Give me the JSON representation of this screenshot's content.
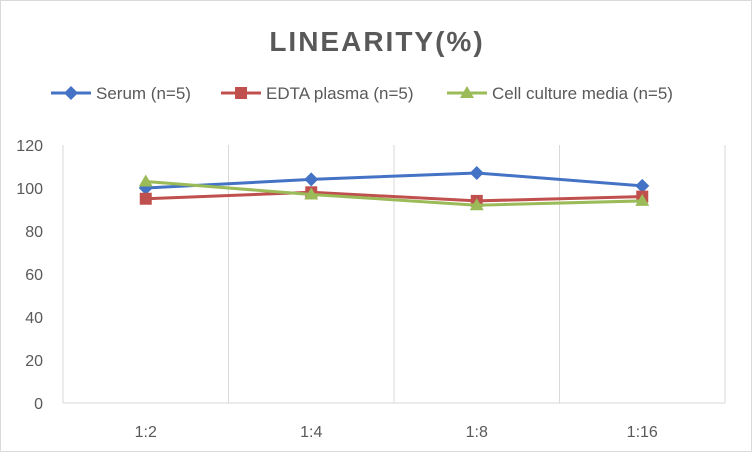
{
  "chart_data": {
    "type": "line",
    "title": "LINEARITY(%)",
    "categories": [
      "1:2",
      "1:4",
      "1:8",
      "1:16"
    ],
    "ylim": [
      0,
      120
    ],
    "yticks": [
      0,
      20,
      40,
      60,
      80,
      100,
      120
    ],
    "grid": "vertical",
    "legend": "top",
    "series": [
      {
        "name": "Serum (n=5)",
        "values": [
          100,
          104,
          107,
          101
        ],
        "color": "#4472C4",
        "marker": "diamond"
      },
      {
        "name": "EDTA plasma (n=5)",
        "values": [
          95,
          98,
          94,
          96
        ],
        "color": "#C0504D",
        "marker": "square"
      },
      {
        "name": "Cell culture media (n=5)",
        "values": [
          103,
          97,
          92,
          94
        ],
        "color": "#9BBB59",
        "marker": "triangle"
      }
    ]
  }
}
